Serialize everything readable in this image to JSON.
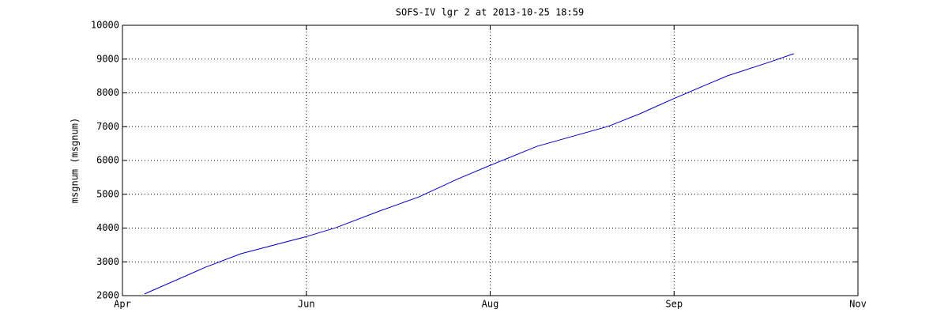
{
  "chart_data": {
    "type": "line",
    "title": "SOFS-IV lgr 2 at 2013-10-25 18:59",
    "y_label": "msgnum (msgnum)",
    "x": [
      6.3,
      23.7,
      33.8,
      52.6,
      60.9,
      73.3,
      84.6,
      95.9,
      105.1,
      118.4,
      138.7,
      147.7,
      157.4,
      172.6,
      185.0,
      191.7
    ],
    "series": [
      {
        "color": "#0000cc",
        "values": [
          2050,
          2840,
          3240,
          3750,
          4010,
          4500,
          4920,
          5460,
          5860,
          6420,
          7010,
          7380,
          7830,
          8500,
          8920,
          9160
        ]
      }
    ],
    "xlim": [
      0,
      210
    ],
    "xticks": [
      {
        "value": 0,
        "label": "Apr"
      },
      {
        "value": 52.5,
        "label": "Jun"
      },
      {
        "value": 105,
        "label": "Aug"
      },
      {
        "value": 157.5,
        "label": "Sep"
      },
      {
        "value": 210,
        "label": "Nov"
      }
    ],
    "ylim": [
      2000,
      10000
    ],
    "yticks": [
      2000,
      3000,
      4000,
      5000,
      6000,
      7000,
      8000,
      9000,
      10000
    ],
    "grid": true
  }
}
